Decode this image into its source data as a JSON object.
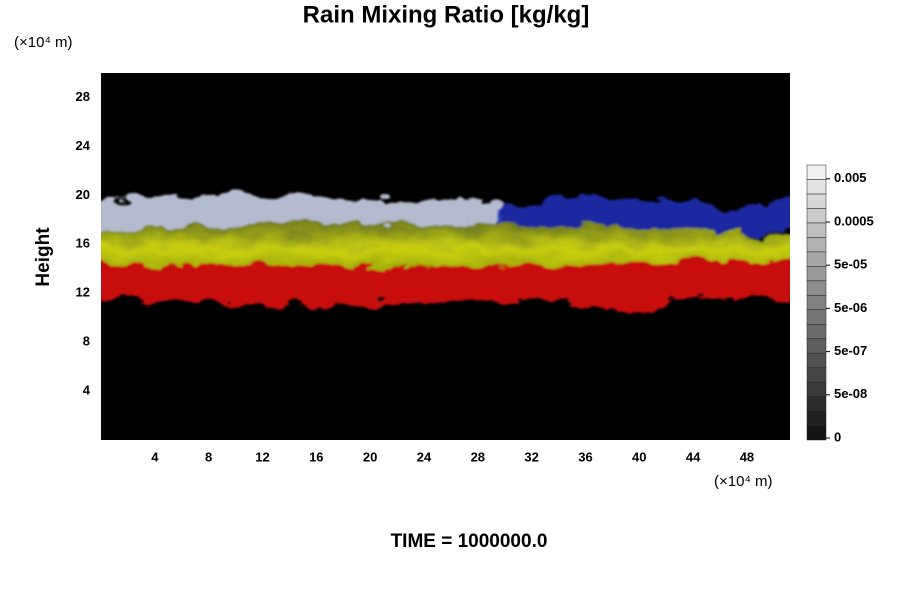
{
  "chart_data": {
    "type": "image",
    "title": "Rain Mixing Ratio [kg/kg]",
    "y_label": "Height",
    "x_unit": "(×10⁴ m)",
    "y_unit": "(×10⁴ m)",
    "footer": "TIME = 1000000.0",
    "xlim": [
      0,
      51.2
    ],
    "xticks": [
      4,
      8,
      12,
      16,
      20,
      24,
      28,
      32,
      36,
      40,
      44,
      48
    ],
    "ylim": [
      0,
      30
    ],
    "yticks": [
      4,
      8,
      12,
      16,
      20,
      24,
      28
    ],
    "colorbar_ticks": [
      {
        "value": 0,
        "label": "0"
      },
      {
        "value": 5e-08,
        "label": "5e-08"
      },
      {
        "value": 5e-07,
        "label": "5e-07"
      },
      {
        "value": 5e-06,
        "label": "5e-06"
      },
      {
        "value": 5e-05,
        "label": "5e-05"
      },
      {
        "value": 0.0005,
        "label": "0.0005"
      },
      {
        "value": 0.005,
        "label": "0.005"
      }
    ]
  }
}
